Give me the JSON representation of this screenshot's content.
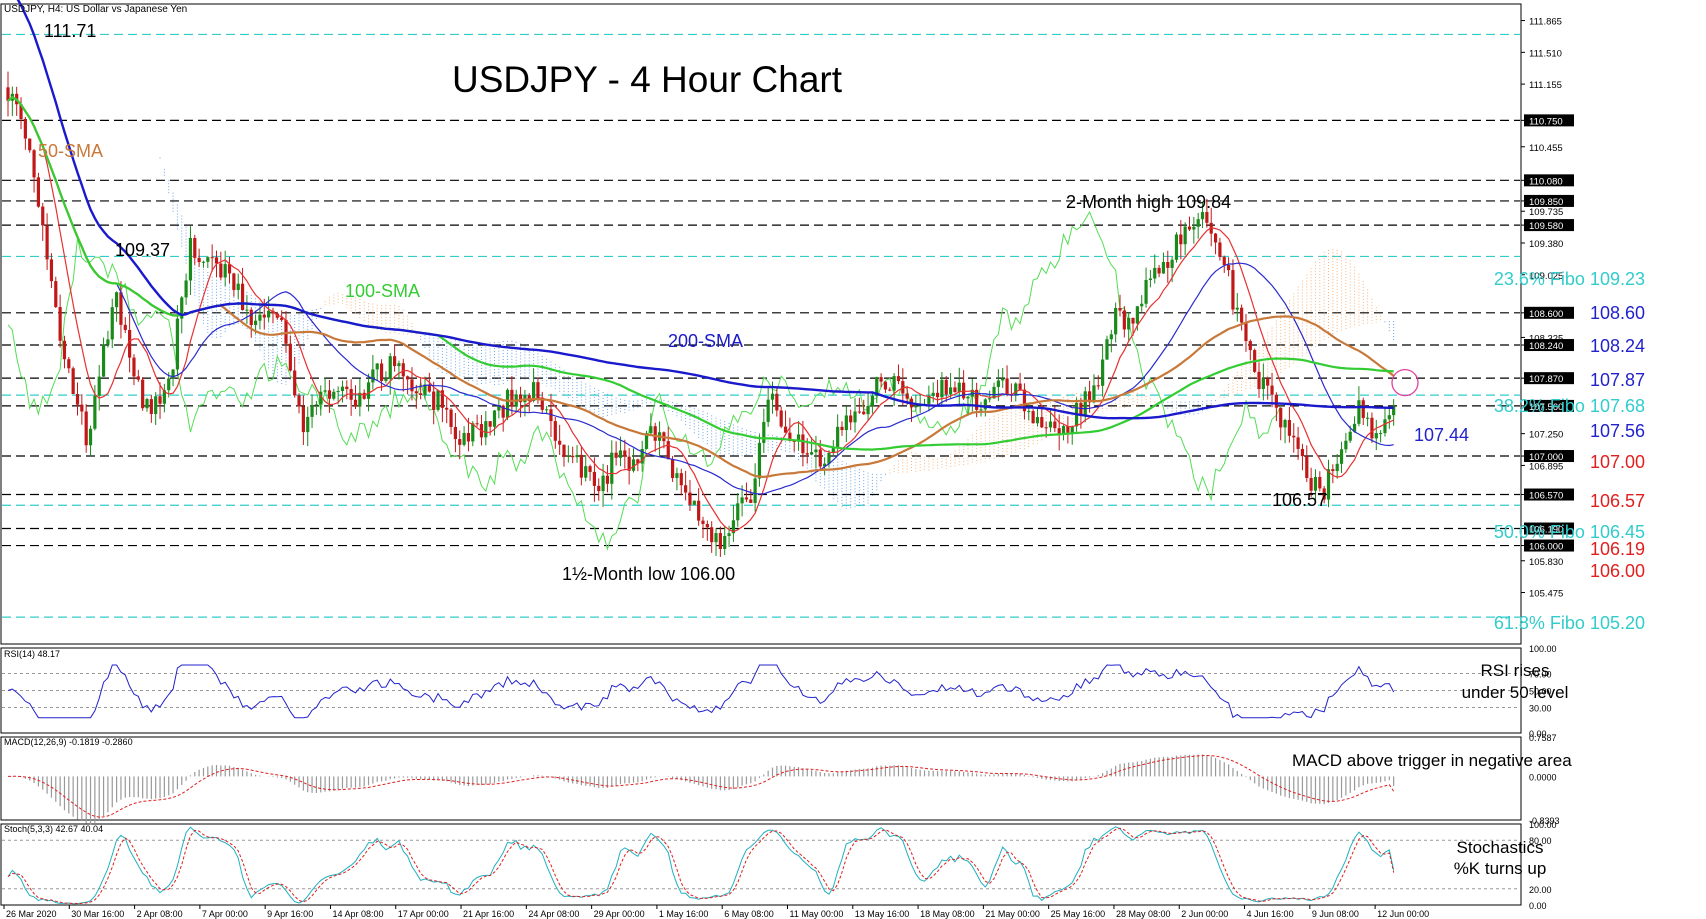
{
  "header": {
    "symbol": "USDJPY, H4:  US Dollar vs Japanese Yen",
    "title": "USDJPY - 4 Hour Chart"
  },
  "colors": {
    "sma50": "#c8793a",
    "sma100": "#33cc33",
    "sma200": "#1a1acc",
    "fibo": "#33cccc",
    "red": "#e02020",
    "blue": "#2222cc",
    "ichimoku_orange": "#f4a460",
    "ichimoku_blue": "#4a90e2"
  },
  "annotations": {
    "top_level": "111.71",
    "sma50": "50-SMA",
    "peak_left": "109.37",
    "sma100": "100-SMA",
    "sma200": "200-SMA",
    "two_month_high": "2-Month high 109.84",
    "low_label": "1½-Month low 106.00",
    "recent_low": "106.57",
    "current": "107.44",
    "fibo_236": "23.6% Fibo 109.23",
    "fibo_382": "38.2% Fibo 107.68",
    "fibo_500": "50.0% Fibo 106.45",
    "fibo_618": "61.8% Fibo 105.20",
    "r_108_60": "108.60",
    "r_108_24": "108.24",
    "r_107_87": "107.87",
    "r_107_56": "107.56",
    "s_107_00": "107.00",
    "s_106_57": "106.57",
    "s_106_19": "106.19",
    "s_106_00": "106.00"
  },
  "rsi": {
    "header": "RSI(14) 48.17",
    "note_line1": "RSI rises",
    "note_line2": "under 50 level"
  },
  "macd": {
    "header": "MACD(12,26,9) -0.1819 -0.2860",
    "note": "MACD above trigger in negative area"
  },
  "stoch": {
    "header": "Stoch(5,3,3) 42.67 40.04",
    "note_line1": "Stochastics",
    "note_line2": "%K turns up"
  },
  "chart_data": {
    "type": "line",
    "title": "USDJPY - 4 Hour Chart",
    "price_ylim": [
      104.9,
      112.05
    ],
    "price_axis_ticks": [
      "111.865",
      "111.510",
      "111.155",
      "110.750",
      "110.455",
      "110.080",
      "109.850",
      "109.735",
      "109.580",
      "109.380",
      "109.025",
      "108.600",
      "108.325",
      "108.240",
      "107.870",
      "107.560",
      "107.250",
      "107.000",
      "106.895",
      "106.570",
      "106.190",
      "106.000",
      "105.830",
      "105.475"
    ],
    "price_axis_highlighted": [
      "110.750",
      "110.080",
      "109.850",
      "109.580",
      "108.600",
      "108.240",
      "107.870",
      "107.560",
      "107.000",
      "106.570",
      "106.190",
      "106.000"
    ],
    "x_ticks": [
      "26 Mar 2020",
      "30 Mar 16:00",
      "2 Apr 08:00",
      "7 Apr 00:00",
      "9 Apr 16:00",
      "14 Apr 08:00",
      "17 Apr 00:00",
      "21 Apr 16:00",
      "24 Apr 08:00",
      "29 Apr 00:00",
      "1 May 16:00",
      "6 May 08:00",
      "11 May 00:00",
      "13 May 16:00",
      "18 May 08:00",
      "21 May 00:00",
      "25 May 16:00",
      "28 May 08:00",
      "2 Jun 00:00",
      "4 Jun 16:00",
      "9 Jun 08:00",
      "12 Jun 00:00"
    ],
    "horizontal_levels": [
      111.71,
      110.75,
      110.08,
      109.85,
      109.58,
      108.6,
      108.24,
      107.87,
      107.56,
      107.0,
      106.57,
      106.19,
      106.0
    ],
    "fibonacci_levels": [
      {
        "level": "23.6%",
        "price": 109.23
      },
      {
        "level": "38.2%",
        "price": 107.68
      },
      {
        "level": "50.0%",
        "price": 106.45
      },
      {
        "level": "61.8%",
        "price": 105.2
      }
    ],
    "close_path": [
      [
        0,
        111.1
      ],
      [
        6,
        110.2
      ],
      [
        12,
        108.3
      ],
      [
        18,
        107.2
      ],
      [
        25,
        108.8
      ],
      [
        31,
        107.5
      ],
      [
        37,
        107.8
      ],
      [
        42,
        109.3
      ],
      [
        48,
        109.2
      ],
      [
        56,
        108.6
      ],
      [
        63,
        108.4
      ],
      [
        68,
        107.3
      ],
      [
        73,
        107.8
      ],
      [
        79,
        107.6
      ],
      [
        85,
        107.9
      ],
      [
        89,
        108.1
      ],
      [
        93,
        107.8
      ],
      [
        99,
        107.6
      ],
      [
        104,
        107.2
      ],
      [
        109,
        107.3
      ],
      [
        115,
        107.6
      ],
      [
        121,
        107.7
      ],
      [
        127,
        107.2
      ],
      [
        132,
        106.8
      ],
      [
        136,
        106.6
      ],
      [
        140,
        107.0
      ],
      [
        144,
        106.9
      ],
      [
        148,
        107.3
      ],
      [
        152,
        107.0
      ],
      [
        156,
        106.5
      ],
      [
        160,
        106.3
      ],
      [
        164,
        106.0
      ],
      [
        168,
        106.4
      ],
      [
        171,
        106.6
      ],
      [
        175,
        107.7
      ],
      [
        179,
        107.2
      ],
      [
        183,
        107.1
      ],
      [
        187,
        106.9
      ],
      [
        191,
        107.2
      ],
      [
        196,
        107.5
      ],
      [
        201,
        107.9
      ],
      [
        206,
        107.7
      ],
      [
        211,
        107.6
      ],
      [
        216,
        107.8
      ],
      [
        221,
        107.6
      ],
      [
        226,
        107.7
      ],
      [
        231,
        107.8
      ],
      [
        236,
        107.5
      ],
      [
        241,
        107.2
      ],
      [
        246,
        107.5
      ],
      [
        251,
        107.8
      ],
      [
        255,
        108.7
      ],
      [
        259,
        108.4
      ],
      [
        263,
        109.0
      ],
      [
        267,
        109.2
      ],
      [
        271,
        109.5
      ],
      [
        275,
        109.84
      ],
      [
        279,
        109.3
      ],
      [
        283,
        108.6
      ],
      [
        287,
        107.9
      ],
      [
        291,
        107.7
      ],
      [
        295,
        107.2
      ],
      [
        299,
        106.8
      ],
      [
        303,
        106.6
      ],
      [
        307,
        107.1
      ],
      [
        311,
        107.5
      ],
      [
        315,
        107.25
      ],
      [
        319,
        107.44
      ]
    ],
    "series": [
      {
        "name": "50-SMA"
      },
      {
        "name": "100-SMA"
      },
      {
        "name": "200-SMA"
      }
    ],
    "rsi": {
      "ylim": [
        0,
        100
      ],
      "axis_ticks": [
        100,
        70,
        50,
        30,
        0
      ],
      "last": 48.17,
      "levels": [
        70,
        50,
        30
      ]
    },
    "macd": {
      "ylim": [
        -0.8393,
        0.7587
      ],
      "axis_ticks": [
        0.7587,
        0.0,
        -0.8393
      ],
      "macd_last": -0.1819,
      "signal_last": -0.286
    },
    "stochastic": {
      "ylim": [
        0,
        100
      ],
      "axis_ticks": [
        100,
        80,
        20,
        0
      ],
      "k_last": 42.67,
      "d_last": 40.04,
      "levels": [
        80,
        20
      ]
    }
  }
}
